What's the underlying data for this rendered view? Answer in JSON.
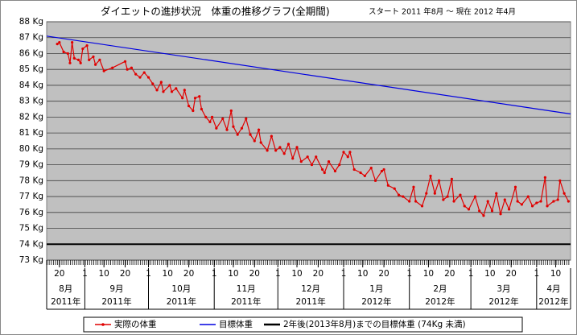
{
  "chart_data": {
    "type": "line",
    "title": "ダイエットの進捗状況　体重の推移グラフ(全期間)",
    "subtitle": "スタート 2011 年8月 ～ 現在 2012 年4月",
    "xlim": [
      "2011-08-14",
      "2012-04-17"
    ],
    "ylim": [
      73,
      88
    ],
    "yticks": [
      {
        "value": 73,
        "label": "73 Kg"
      },
      {
        "value": 74,
        "label": "74 Kg"
      },
      {
        "value": 75,
        "label": "75 Kg"
      },
      {
        "value": 76,
        "label": "76 Kg"
      },
      {
        "value": 77,
        "label": "77 Kg"
      },
      {
        "value": 78,
        "label": "78 Kg"
      },
      {
        "value": 79,
        "label": "79 Kg"
      },
      {
        "value": 80,
        "label": "80 Kg"
      },
      {
        "value": 81,
        "label": "81 Kg"
      },
      {
        "value": 82,
        "label": "82 Kg"
      },
      {
        "value": 83,
        "label": "83 Kg"
      },
      {
        "value": 84,
        "label": "84 Kg"
      },
      {
        "value": 85,
        "label": "85 Kg"
      },
      {
        "value": 86,
        "label": "86 Kg"
      },
      {
        "value": 87,
        "label": "87 Kg"
      },
      {
        "value": 88,
        "label": "88 Kg"
      }
    ],
    "xticks": [
      {
        "value": "2011-08-20",
        "label": "20"
      },
      {
        "value": "2011-09-01",
        "label": "1"
      },
      {
        "value": "2011-09-10",
        "label": "10"
      },
      {
        "value": "2011-09-20",
        "label": "20"
      },
      {
        "value": "2011-10-01",
        "label": "1"
      },
      {
        "value": "2011-10-10",
        "label": "10"
      },
      {
        "value": "2011-10-20",
        "label": "20"
      },
      {
        "value": "2011-11-01",
        "label": "1"
      },
      {
        "value": "2011-11-10",
        "label": "10"
      },
      {
        "value": "2011-11-20",
        "label": "20"
      },
      {
        "value": "2011-12-01",
        "label": "1"
      },
      {
        "value": "2011-12-10",
        "label": "10"
      },
      {
        "value": "2011-12-20",
        "label": "20"
      },
      {
        "value": "2012-01-01",
        "label": "1"
      },
      {
        "value": "2012-01-10",
        "label": "10"
      },
      {
        "value": "2012-01-20",
        "label": "20"
      },
      {
        "value": "2012-02-01",
        "label": "1"
      },
      {
        "value": "2012-02-10",
        "label": "10"
      },
      {
        "value": "2012-02-20",
        "label": "20"
      },
      {
        "value": "2012-03-01",
        "label": "1"
      },
      {
        "value": "2012-03-10",
        "label": "10"
      },
      {
        "value": "2012-03-20",
        "label": "20"
      },
      {
        "value": "2012-04-01",
        "label": "1"
      },
      {
        "value": "2012-04-10",
        "label": "10"
      }
    ],
    "months": [
      {
        "value": "2011-08",
        "label": "8月",
        "year": "2011年"
      },
      {
        "value": "2011-09",
        "label": "9月",
        "year": "2011年"
      },
      {
        "value": "2011-10",
        "label": "10月",
        "year": "2011年"
      },
      {
        "value": "2011-11",
        "label": "11月",
        "year": "2011年"
      },
      {
        "value": "2011-12",
        "label": "12月",
        "year": "2011年"
      },
      {
        "value": "2012-01",
        "label": "1月",
        "year": "2012年"
      },
      {
        "value": "2012-02",
        "label": "2月",
        "year": "2012年"
      },
      {
        "value": "2012-03",
        "label": "3月",
        "year": "2012年"
      },
      {
        "value": "2012-04",
        "label": "4月",
        "year": "2012年"
      }
    ],
    "grid": true,
    "legend": "bottom",
    "series": [
      {
        "name": "実際の体重",
        "color": "#e00000",
        "markers": true,
        "x": [
          "2011-08-19",
          "2011-08-20",
          "2011-08-22",
          "2011-08-24",
          "2011-08-25",
          "2011-08-26",
          "2011-08-27",
          "2011-08-29",
          "2011-08-30",
          "2011-08-31",
          "2011-09-02",
          "2011-09-03",
          "2011-09-05",
          "2011-09-06",
          "2011-09-08",
          "2011-09-10",
          "2011-09-14",
          "2011-09-20",
          "2011-09-21",
          "2011-09-23",
          "2011-09-25",
          "2011-09-27",
          "2011-09-29",
          "2011-10-01",
          "2011-10-03",
          "2011-10-05",
          "2011-10-07",
          "2011-10-08",
          "2011-10-11",
          "2011-10-12",
          "2011-10-14",
          "2011-10-17",
          "2011-10-18",
          "2011-10-20",
          "2011-10-22",
          "2011-10-23",
          "2011-10-25",
          "2011-10-26",
          "2011-10-28",
          "2011-10-30",
          "2011-10-31",
          "2011-11-02",
          "2011-11-05",
          "2011-11-07",
          "2011-11-09",
          "2011-11-10",
          "2011-11-12",
          "2011-11-14",
          "2011-11-16",
          "2011-11-18",
          "2011-11-20",
          "2011-11-22",
          "2011-11-23",
          "2011-11-26",
          "2011-11-28",
          "2011-11-30",
          "2011-12-02",
          "2011-12-04",
          "2011-12-06",
          "2011-12-08",
          "2011-12-10",
          "2011-12-12",
          "2011-12-15",
          "2011-12-17",
          "2011-12-19",
          "2011-12-22",
          "2011-12-23",
          "2011-12-25",
          "2011-12-28",
          "2011-12-30",
          "2012-01-01",
          "2012-01-03",
          "2012-01-04",
          "2012-01-06",
          "2012-01-09",
          "2012-01-11",
          "2012-01-14",
          "2012-01-16",
          "2012-01-19",
          "2012-01-20",
          "2012-01-22",
          "2012-01-25",
          "2012-01-27",
          "2012-01-29",
          "2012-02-01",
          "2012-02-03",
          "2012-02-04",
          "2012-02-07",
          "2012-02-09",
          "2012-02-11",
          "2012-02-13",
          "2012-02-15",
          "2012-02-17",
          "2012-02-19",
          "2012-02-21",
          "2012-02-22",
          "2012-02-25",
          "2012-02-27",
          "2012-02-29",
          "2012-03-03",
          "2012-03-05",
          "2012-03-07",
          "2012-03-09",
          "2012-03-11",
          "2012-03-13",
          "2012-03-15",
          "2012-03-17",
          "2012-03-19",
          "2012-03-22",
          "2012-03-23",
          "2012-03-25",
          "2012-03-28",
          "2012-03-30",
          "2012-04-01",
          "2012-04-03",
          "2012-04-05",
          "2012-04-06",
          "2012-04-09",
          "2012-04-11",
          "2012-04-12",
          "2012-04-14",
          "2012-04-16"
        ],
        "values": [
          86.6,
          86.7,
          86.1,
          86.0,
          85.4,
          86.7,
          85.7,
          85.6,
          85.4,
          86.3,
          86.5,
          85.6,
          85.8,
          85.3,
          85.6,
          84.9,
          85.1,
          85.5,
          85.0,
          85.1,
          84.7,
          84.5,
          84.8,
          84.5,
          84.1,
          83.7,
          84.2,
          83.6,
          84.0,
          83.6,
          83.8,
          83.2,
          83.7,
          82.7,
          82.4,
          83.2,
          83.3,
          82.5,
          82.0,
          81.7,
          82.0,
          81.3,
          81.9,
          81.2,
          82.4,
          81.4,
          80.9,
          81.3,
          81.9,
          80.9,
          80.5,
          81.2,
          80.4,
          79.9,
          80.8,
          79.9,
          80.1,
          79.7,
          80.3,
          79.4,
          80.1,
          79.2,
          79.5,
          79.0,
          79.5,
          78.7,
          78.5,
          79.2,
          78.6,
          79.0,
          79.8,
          79.5,
          79.8,
          78.7,
          78.5,
          78.3,
          78.8,
          78.0,
          78.6,
          78.7,
          77.7,
          77.5,
          77.1,
          77.0,
          76.7,
          77.6,
          76.7,
          76.4,
          77.2,
          78.3,
          77.2,
          78.0,
          76.8,
          77.0,
          78.1,
          76.7,
          77.1,
          76.4,
          76.2,
          77.0,
          76.1,
          75.8,
          76.7,
          76.1,
          77.2,
          75.9,
          76.8,
          76.2,
          77.6,
          76.7,
          76.5,
          77.0,
          76.4,
          76.6,
          76.7,
          78.2,
          76.4,
          76.7,
          76.8,
          78.0,
          77.2,
          76.7
        ]
      },
      {
        "name": "目標体重",
        "color": "#0000e0",
        "x": [
          "2011-08-14",
          "2012-04-17"
        ],
        "values": [
          87.1,
          82.2
        ]
      },
      {
        "name": "2年後(2013年8月)までの目標体重 (74Kg 未満)",
        "color": "#000000",
        "width": 2,
        "x": [
          "2011-08-14",
          "2012-04-17"
        ],
        "values": [
          74,
          74
        ]
      }
    ]
  }
}
